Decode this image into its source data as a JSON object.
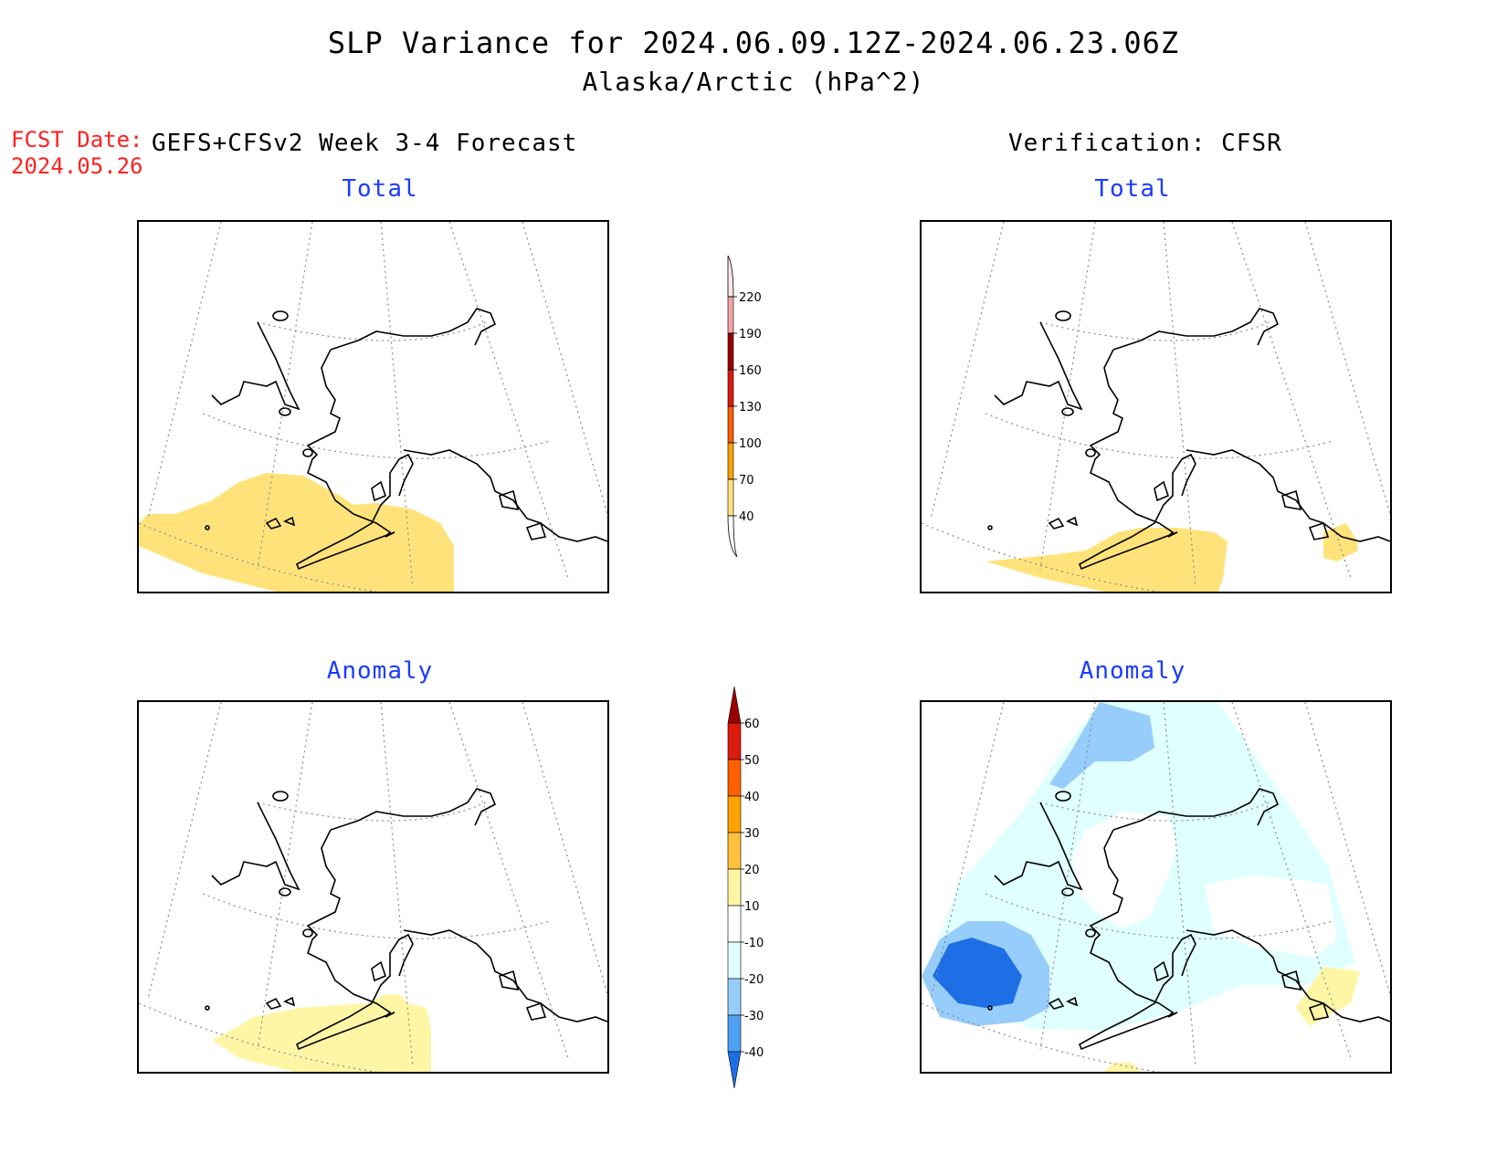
{
  "title": "SLP Variance for 2024.06.09.12Z-2024.06.23.06Z",
  "subtitle": "Alaska/Arctic (hPa^2)",
  "forecast_date_label": "FCST Date:",
  "forecast_date": "2024.05.26",
  "left_header": "GEFS+CFSv2 Week 3-4 Forecast",
  "right_header": "Verification: CFSR",
  "panels": {
    "top_left_title": "Total",
    "top_right_title": "Total",
    "bottom_left_title": "Anomaly",
    "bottom_right_title": "Anomaly"
  },
  "total_colorbar": {
    "labels": [
      "220",
      "190",
      "160",
      "130",
      "100",
      "70",
      "40"
    ],
    "colors": [
      "#fde6e6",
      "#f4a3a3",
      "#9b0000",
      "#dd1a0e",
      "#ff6000",
      "#ffa200",
      "#ffe37a"
    ]
  },
  "anomaly_colorbar": {
    "labels": [
      "60",
      "50",
      "40",
      "30",
      "20",
      "10",
      "-10",
      "-20",
      "-30",
      "-40"
    ],
    "colors": [
      "#9b0000",
      "#dd1a0e",
      "#ff6000",
      "#ffa200",
      "#ffc13c",
      "#fff6a5",
      "#ffffff",
      "#e0ffff",
      "#96cdfa",
      "#4ea0f5",
      "#1e6ee6"
    ]
  }
}
